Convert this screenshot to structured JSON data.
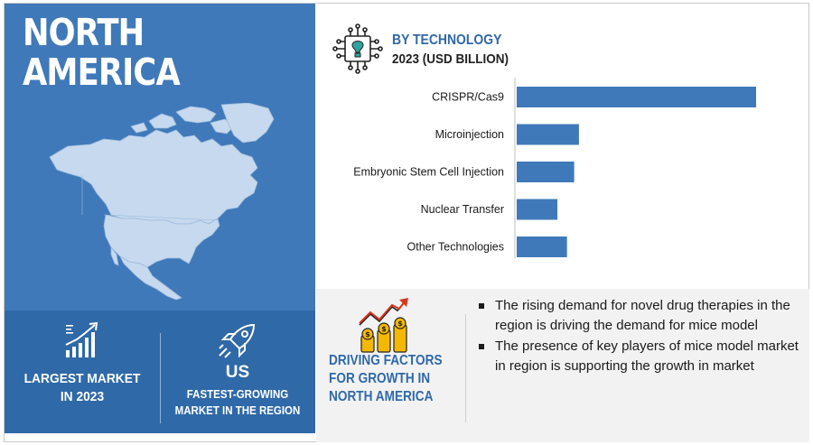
{
  "region": {
    "title_line1": "NORTH",
    "title_line2": "AMERICA"
  },
  "stats": {
    "largest": {
      "line1": "LARGEST MARKET",
      "line2": "IN 2023",
      "icon": "growth-chart-icon"
    },
    "fastest": {
      "big": "US",
      "line1": "FASTEST-GROWING",
      "line2": "MARKET IN THE REGION",
      "icon": "rocket-icon"
    }
  },
  "chart_header": {
    "title": "BY TECHNOLOGY",
    "subtitle": "2023 (USD BILLION)",
    "icon": "chip-icon"
  },
  "chart_data": {
    "type": "bar",
    "orientation": "horizontal",
    "categories": [
      "CRISPR/Cas9",
      "Microinjection",
      "Embryonic Stem Cell Injection",
      "Nuclear Transfer",
      "Other Technologies"
    ],
    "values": [
      1.0,
      0.26,
      0.24,
      0.17,
      0.21
    ],
    "xlim": [
      0,
      1.0
    ],
    "bar_color": "#3f79b9",
    "grid": false,
    "axis_ticks_shown": false
  },
  "drivers": {
    "title_line1": "DRIVING FACTORS",
    "title_line2": "FOR GROWTH IN",
    "title_line3": "NORTH AMERICA",
    "icon": "growth-coins-icon",
    "points": [
      "The rising demand for novel drug therapies in the region is driving the demand for mice model",
      "The presence of key players of mice model market in region is supporting the growth in market"
    ]
  },
  "colors": {
    "accent": "#2f69a8",
    "panel": "#3f79b9",
    "panel_dark": "#2f69a8",
    "coin": "#f5b800"
  }
}
